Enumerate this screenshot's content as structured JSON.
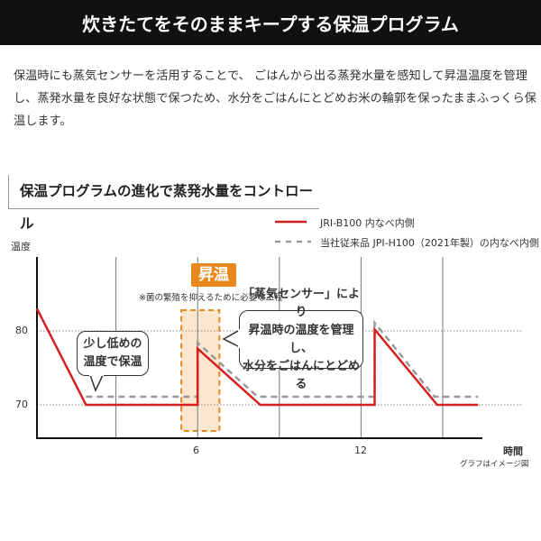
{
  "header": {
    "title": "炊きたてをそのままキープする保温プログラム"
  },
  "description": "保温時にも蒸気センサーを活用することで、 ごはんから出る蒸発水量を感知して昇温温度を管理し、蒸発水量を良好な状態で保つため、水分をごはんにとどめお米の輪郭を保ったままふっくら保温します。",
  "section_title": "保温プログラムの進化で蒸発水量をコントロール",
  "chart_data": {
    "type": "line",
    "title": "",
    "xlabel": "時間",
    "ylabel": "温度",
    "xticks": [
      "6",
      "12"
    ],
    "yticks": [
      "70",
      "80"
    ],
    "xlim": [
      0,
      16.3
    ],
    "ylim": [
      64.5,
      84.5
    ],
    "grid": {
      "vertical": [
        3,
        6,
        9,
        12,
        15
      ],
      "horizontal_dotted": [
        70,
        80
      ]
    },
    "legend_placement": "top-right",
    "series": [
      {
        "name": "JRI-B100 内なべ内側",
        "color": "#d42020",
        "style": "solid",
        "points": [
          [
            0.1,
            83
          ],
          [
            1.9,
            70
          ],
          [
            6,
            70
          ],
          [
            6,
            77.6
          ],
          [
            8.3,
            70
          ],
          [
            12.5,
            70
          ],
          [
            12.5,
            80.2
          ],
          [
            14.8,
            70
          ],
          [
            16.3,
            70
          ]
        ]
      },
      {
        "name": "当社従来品 JPI-H100（2021年製）の内なべ内側",
        "color": "#999999",
        "style": "dashed",
        "points": [
          [
            1.9,
            71.1
          ],
          [
            6,
            71.1
          ],
          [
            6,
            78.4
          ],
          [
            8.2,
            71.1
          ],
          [
            12.5,
            71.1
          ],
          [
            12.5,
            81.1
          ],
          [
            14.7,
            71.1
          ],
          [
            16.3,
            71.1
          ]
        ]
      }
    ],
    "highlight": {
      "label": "昇温",
      "note": "※菌の繁殖を抑えるために必要な工程",
      "x_range": [
        5.4,
        6.8
      ],
      "color": "#e8871e"
    },
    "annotations": [
      {
        "text_lines": [
          "少し低めの",
          "温度で保温"
        ]
      },
      {
        "text_lines": [
          "「蒸気センサー」により",
          "昇温時の温度を管理し、",
          "水分をごはんにとどめる"
        ]
      }
    ],
    "footnote": "グラフはイメージ図"
  }
}
